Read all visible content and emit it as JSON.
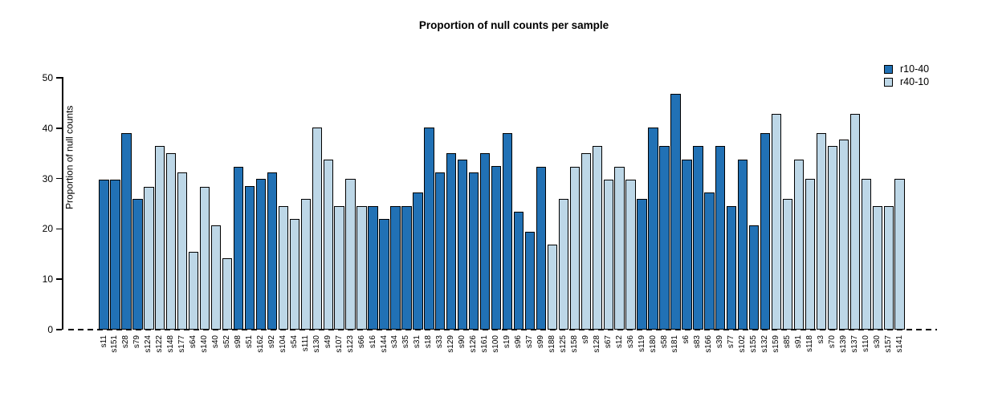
{
  "chart_data": {
    "type": "bar",
    "title": "Proportion of null counts per sample",
    "ylabel": "Proportion of null counts",
    "xlabel": "",
    "ylim": [
      0,
      50
    ],
    "yticks": [
      0,
      10,
      20,
      30,
      40,
      50
    ],
    "grid": false,
    "legend_position": "top-right",
    "legend": [
      {
        "label": "r10-40",
        "color": "#2171B5"
      },
      {
        "label": "r40-10",
        "color": "#BDD7E7"
      }
    ],
    "bars": [
      {
        "label": "s11",
        "value": 29.7,
        "group": "r10-40"
      },
      {
        "label": "s151",
        "value": 29.7,
        "group": "r10-40"
      },
      {
        "label": "s28",
        "value": 39.0,
        "group": "r10-40"
      },
      {
        "label": "s79",
        "value": 25.9,
        "group": "r10-40"
      },
      {
        "label": "s124",
        "value": 28.4,
        "group": "r40-10"
      },
      {
        "label": "s122",
        "value": 36.4,
        "group": "r40-10"
      },
      {
        "label": "s148",
        "value": 35.0,
        "group": "r40-10"
      },
      {
        "label": "s177",
        "value": 31.2,
        "group": "r40-10"
      },
      {
        "label": "s64",
        "value": 15.4,
        "group": "r40-10"
      },
      {
        "label": "s140",
        "value": 28.4,
        "group": "r40-10"
      },
      {
        "label": "s40",
        "value": 20.7,
        "group": "r40-10"
      },
      {
        "label": "s52",
        "value": 14.2,
        "group": "r40-10"
      },
      {
        "label": "s98",
        "value": 32.4,
        "group": "r10-40"
      },
      {
        "label": "s51",
        "value": 28.5,
        "group": "r10-40"
      },
      {
        "label": "s162",
        "value": 29.9,
        "group": "r10-40"
      },
      {
        "label": "s92",
        "value": 31.2,
        "group": "r10-40"
      },
      {
        "label": "s104",
        "value": 24.6,
        "group": "r40-10"
      },
      {
        "label": "s54",
        "value": 22.0,
        "group": "r40-10"
      },
      {
        "label": "s111",
        "value": 26.0,
        "group": "r40-10"
      },
      {
        "label": "s130",
        "value": 40.2,
        "group": "r40-10"
      },
      {
        "label": "s49",
        "value": 33.8,
        "group": "r40-10"
      },
      {
        "label": "s107",
        "value": 24.6,
        "group": "r40-10"
      },
      {
        "label": "s123",
        "value": 29.9,
        "group": "r40-10"
      },
      {
        "label": "s66",
        "value": 24.6,
        "group": "r40-10"
      },
      {
        "label": "s16",
        "value": 24.6,
        "group": "r10-40"
      },
      {
        "label": "s144",
        "value": 22.0,
        "group": "r10-40"
      },
      {
        "label": "s34",
        "value": 24.6,
        "group": "r10-40"
      },
      {
        "label": "s35",
        "value": 24.6,
        "group": "r10-40"
      },
      {
        "label": "s31",
        "value": 27.3,
        "group": "r10-40"
      },
      {
        "label": "s18",
        "value": 40.2,
        "group": "r10-40"
      },
      {
        "label": "s33",
        "value": 31.2,
        "group": "r10-40"
      },
      {
        "label": "s129",
        "value": 35.0,
        "group": "r10-40"
      },
      {
        "label": "s90",
        "value": 33.8,
        "group": "r10-40"
      },
      {
        "label": "s126",
        "value": 31.2,
        "group": "r10-40"
      },
      {
        "label": "s161",
        "value": 35.0,
        "group": "r10-40"
      },
      {
        "label": "s100",
        "value": 32.5,
        "group": "r10-40"
      },
      {
        "label": "s19",
        "value": 39.0,
        "group": "r10-40"
      },
      {
        "label": "s96",
        "value": 23.4,
        "group": "r10-40"
      },
      {
        "label": "s37",
        "value": 19.5,
        "group": "r10-40"
      },
      {
        "label": "s99",
        "value": 32.4,
        "group": "r10-40"
      },
      {
        "label": "s188",
        "value": 16.8,
        "group": "r40-10"
      },
      {
        "label": "s125",
        "value": 25.9,
        "group": "r40-10"
      },
      {
        "label": "s158",
        "value": 32.4,
        "group": "r40-10"
      },
      {
        "label": "s9",
        "value": 35.0,
        "group": "r40-10"
      },
      {
        "label": "s128",
        "value": 36.4,
        "group": "r40-10"
      },
      {
        "label": "s67",
        "value": 29.7,
        "group": "r40-10"
      },
      {
        "label": "s12",
        "value": 32.4,
        "group": "r40-10"
      },
      {
        "label": "s36",
        "value": 29.7,
        "group": "r40-10"
      },
      {
        "label": "s119",
        "value": 25.9,
        "group": "r10-40"
      },
      {
        "label": "s180",
        "value": 40.2,
        "group": "r10-40"
      },
      {
        "label": "s58",
        "value": 36.4,
        "group": "r10-40"
      },
      {
        "label": "s181",
        "value": 46.8,
        "group": "r10-40"
      },
      {
        "label": "s6",
        "value": 33.8,
        "group": "r10-40"
      },
      {
        "label": "s83",
        "value": 36.4,
        "group": "r10-40"
      },
      {
        "label": "s166",
        "value": 27.2,
        "group": "r10-40"
      },
      {
        "label": "s39",
        "value": 36.4,
        "group": "r10-40"
      },
      {
        "label": "s77",
        "value": 24.6,
        "group": "r10-40"
      },
      {
        "label": "s102",
        "value": 33.8,
        "group": "r10-40"
      },
      {
        "label": "s155",
        "value": 20.7,
        "group": "r10-40"
      },
      {
        "label": "s132",
        "value": 39.0,
        "group": "r10-40"
      },
      {
        "label": "s159",
        "value": 42.8,
        "group": "r40-10"
      },
      {
        "label": "s85",
        "value": 25.9,
        "group": "r40-10"
      },
      {
        "label": "s91",
        "value": 33.8,
        "group": "r40-10"
      },
      {
        "label": "s118",
        "value": 29.9,
        "group": "r40-10"
      },
      {
        "label": "s3",
        "value": 39.0,
        "group": "r40-10"
      },
      {
        "label": "s70",
        "value": 36.4,
        "group": "r40-10"
      },
      {
        "label": "s139",
        "value": 37.7,
        "group": "r40-10"
      },
      {
        "label": "s137",
        "value": 42.8,
        "group": "r40-10"
      },
      {
        "label": "s110",
        "value": 29.9,
        "group": "r40-10"
      },
      {
        "label": "s30",
        "value": 24.6,
        "group": "r40-10"
      },
      {
        "label": "s157",
        "value": 24.6,
        "group": "r40-10"
      },
      {
        "label": "s141",
        "value": 29.9,
        "group": "r40-10"
      }
    ]
  }
}
